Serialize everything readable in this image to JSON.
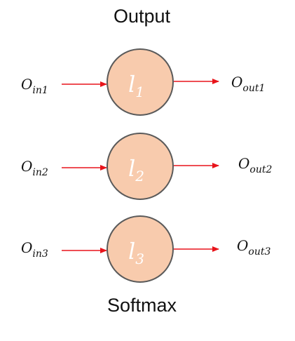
{
  "title": "Output",
  "footer_label": "Softmax",
  "colors": {
    "node_fill": "#F8CBAD",
    "node_stroke": "#5A5A5A",
    "arrow": "#E8141B",
    "node_text": "#FFFFFF"
  },
  "neurons": [
    {
      "label_main": "l",
      "label_sub": "1",
      "input_main": "O",
      "input_sub": "in1",
      "output_main": "O",
      "output_sub": "out1"
    },
    {
      "label_main": "l",
      "label_sub": "2",
      "input_main": "O",
      "input_sub": "in2",
      "output_main": "O",
      "output_sub": "out2"
    },
    {
      "label_main": "l",
      "label_sub": "3",
      "input_main": "O",
      "input_sub": "in3",
      "output_main": "O",
      "output_sub": "out3"
    }
  ]
}
